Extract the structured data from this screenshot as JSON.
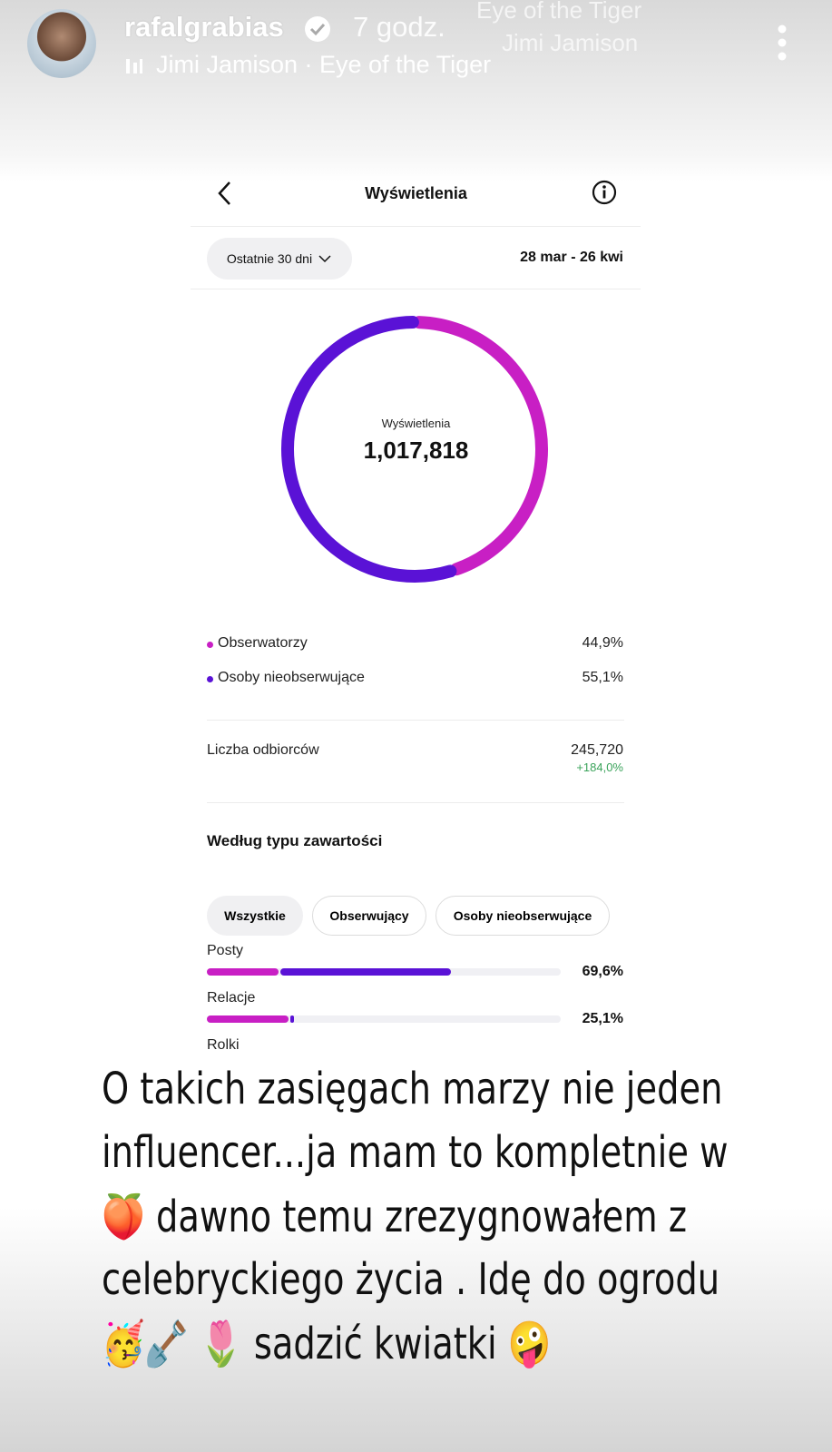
{
  "story_header": {
    "username": "rafalgrabias",
    "time": "7 godz.",
    "music": "Jimi Jamison · Eye of the Tiger",
    "overlay_song": "Eye of the Tiger",
    "overlay_artist": "Jimi Jamison"
  },
  "screen": {
    "title": "Wyświetlenia",
    "period_button": "Ostatnie 30 dni",
    "date_range": "28 mar - 26 kwi",
    "donut": {
      "center_label": "Wyświetlenia",
      "center_value": "1,017,818",
      "segments": [
        {
          "name": "Obserwatorzy",
          "value": 44.9,
          "label": "44,9%",
          "color": "#c81fc4"
        },
        {
          "name": "Osoby nieobserwujące",
          "value": 55.1,
          "label": "55,1%",
          "color": "#5a12d6"
        }
      ]
    },
    "reach": {
      "label": "Liczba odbiorców",
      "value": "245,720",
      "change": "+184,0%"
    },
    "content_section": {
      "title": "Według typu zawartości",
      "tabs": [
        "Wszystkie",
        "Obserwujący",
        "Osoby nieobserwujące"
      ],
      "rows": [
        {
          "name": "Posty",
          "value": 69.6,
          "label": "69,6%",
          "segments": [
            20.8,
            48.8
          ]
        },
        {
          "name": "Relacje",
          "value": 25.1,
          "label": "25,1%",
          "segments": [
            23.6,
            1.5
          ]
        },
        {
          "name": "Rolki"
        }
      ]
    }
  },
  "caption": [
    "O takich zasięgach marzy nie jeden",
    "influencer...ja mam to kompletnie w",
    "🍑 dawno temu zrezygnowałem z",
    "celebryckiego życia . Idę do ogrodu",
    "🥳🪏 🌷 sadzić kwiatki 🤪"
  ]
}
